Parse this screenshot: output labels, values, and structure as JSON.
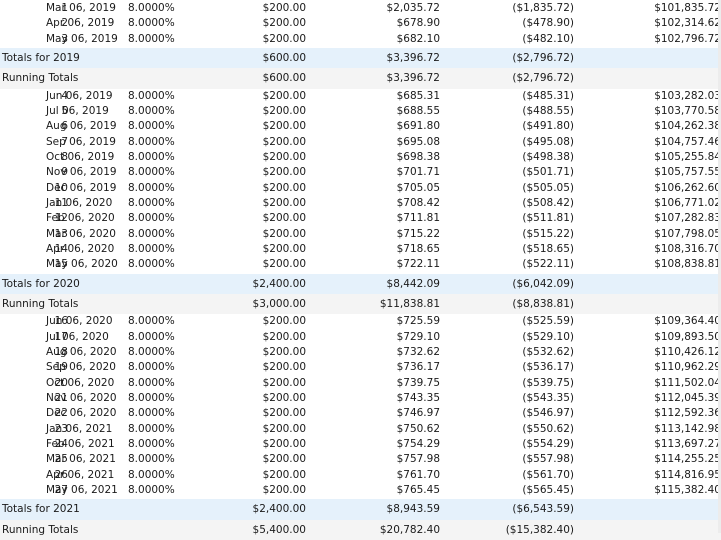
{
  "schedule": {
    "sections": [
      {
        "rows": [
          {
            "num": "1",
            "date": "Mar 06, 2019",
            "rate": "8.0000%",
            "payment": "$200.00",
            "interest": "$2,035.72",
            "principal": "($1,835.72)",
            "balance": "$101,835.72"
          },
          {
            "num": "2",
            "date": "Apr 06, 2019",
            "rate": "8.0000%",
            "payment": "$200.00",
            "interest": "$678.90",
            "principal": "($478.90)",
            "balance": "$102,314.62"
          },
          {
            "num": "3",
            "date": "May 06, 2019",
            "rate": "8.0000%",
            "payment": "$200.00",
            "interest": "$682.10",
            "principal": "($482.10)",
            "balance": "$102,796.72"
          }
        ],
        "totals": {
          "label": "Totals for 2019",
          "payment": "$600.00",
          "interest": "$3,396.72",
          "principal": "($2,796.72)"
        },
        "running": {
          "label": "Running Totals",
          "payment": "$600.00",
          "interest": "$3,396.72",
          "principal": "($2,796.72)"
        }
      },
      {
        "rows": [
          {
            "num": "4",
            "date": "Jun 06, 2019",
            "rate": "8.0000%",
            "payment": "$200.00",
            "interest": "$685.31",
            "principal": "($485.31)",
            "balance": "$103,282.03"
          },
          {
            "num": "5",
            "date": "Jul 06, 2019",
            "rate": "8.0000%",
            "payment": "$200.00",
            "interest": "$688.55",
            "principal": "($488.55)",
            "balance": "$103,770.58"
          },
          {
            "num": "6",
            "date": "Aug 06, 2019",
            "rate": "8.0000%",
            "payment": "$200.00",
            "interest": "$691.80",
            "principal": "($491.80)",
            "balance": "$104,262.38"
          },
          {
            "num": "7",
            "date": "Sep 06, 2019",
            "rate": "8.0000%",
            "payment": "$200.00",
            "interest": "$695.08",
            "principal": "($495.08)",
            "balance": "$104,757.46"
          },
          {
            "num": "8",
            "date": "Oct 06, 2019",
            "rate": "8.0000%",
            "payment": "$200.00",
            "interest": "$698.38",
            "principal": "($498.38)",
            "balance": "$105,255.84"
          },
          {
            "num": "9",
            "date": "Nov 06, 2019",
            "rate": "8.0000%",
            "payment": "$200.00",
            "interest": "$701.71",
            "principal": "($501.71)",
            "balance": "$105,757.55"
          },
          {
            "num": "10",
            "date": "Dec 06, 2019",
            "rate": "8.0000%",
            "payment": "$200.00",
            "interest": "$705.05",
            "principal": "($505.05)",
            "balance": "$106,262.60"
          },
          {
            "num": "11",
            "date": "Jan 06, 2020",
            "rate": "8.0000%",
            "payment": "$200.00",
            "interest": "$708.42",
            "principal": "($508.42)",
            "balance": "$106,771.02"
          },
          {
            "num": "12",
            "date": "Feb 06, 2020",
            "rate": "8.0000%",
            "payment": "$200.00",
            "interest": "$711.81",
            "principal": "($511.81)",
            "balance": "$107,282.83"
          },
          {
            "num": "13",
            "date": "Mar 06, 2020",
            "rate": "8.0000%",
            "payment": "$200.00",
            "interest": "$715.22",
            "principal": "($515.22)",
            "balance": "$107,798.05"
          },
          {
            "num": "14",
            "date": "Apr 06, 2020",
            "rate": "8.0000%",
            "payment": "$200.00",
            "interest": "$718.65",
            "principal": "($518.65)",
            "balance": "$108,316.70"
          },
          {
            "num": "15",
            "date": "May 06, 2020",
            "rate": "8.0000%",
            "payment": "$200.00",
            "interest": "$722.11",
            "principal": "($522.11)",
            "balance": "$108,838.81"
          }
        ],
        "totals": {
          "label": "Totals for 2020",
          "payment": "$2,400.00",
          "interest": "$8,442.09",
          "principal": "($6,042.09)"
        },
        "running": {
          "label": "Running Totals",
          "payment": "$3,000.00",
          "interest": "$11,838.81",
          "principal": "($8,838.81)"
        }
      },
      {
        "rows": [
          {
            "num": "16",
            "date": "Jun 06, 2020",
            "rate": "8.0000%",
            "payment": "$200.00",
            "interest": "$725.59",
            "principal": "($525.59)",
            "balance": "$109,364.40"
          },
          {
            "num": "17",
            "date": "Jul 06, 2020",
            "rate": "8.0000%",
            "payment": "$200.00",
            "interest": "$729.10",
            "principal": "($529.10)",
            "balance": "$109,893.50"
          },
          {
            "num": "18",
            "date": "Aug 06, 2020",
            "rate": "8.0000%",
            "payment": "$200.00",
            "interest": "$732.62",
            "principal": "($532.62)",
            "balance": "$110,426.12"
          },
          {
            "num": "19",
            "date": "Sep 06, 2020",
            "rate": "8.0000%",
            "payment": "$200.00",
            "interest": "$736.17",
            "principal": "($536.17)",
            "balance": "$110,962.29"
          },
          {
            "num": "20",
            "date": "Oct 06, 2020",
            "rate": "8.0000%",
            "payment": "$200.00",
            "interest": "$739.75",
            "principal": "($539.75)",
            "balance": "$111,502.04"
          },
          {
            "num": "21",
            "date": "Nov 06, 2020",
            "rate": "8.0000%",
            "payment": "$200.00",
            "interest": "$743.35",
            "principal": "($543.35)",
            "balance": "$112,045.39"
          },
          {
            "num": "22",
            "date": "Dec 06, 2020",
            "rate": "8.0000%",
            "payment": "$200.00",
            "interest": "$746.97",
            "principal": "($546.97)",
            "balance": "$112,592.36"
          },
          {
            "num": "23",
            "date": "Jan 06, 2021",
            "rate": "8.0000%",
            "payment": "$200.00",
            "interest": "$750.62",
            "principal": "($550.62)",
            "balance": "$113,142.98"
          },
          {
            "num": "24",
            "date": "Feb 06, 2021",
            "rate": "8.0000%",
            "payment": "$200.00",
            "interest": "$754.29",
            "principal": "($554.29)",
            "balance": "$113,697.27"
          },
          {
            "num": "25",
            "date": "Mar 06, 2021",
            "rate": "8.0000%",
            "payment": "$200.00",
            "interest": "$757.98",
            "principal": "($557.98)",
            "balance": "$114,255.25"
          },
          {
            "num": "26",
            "date": "Apr 06, 2021",
            "rate": "8.0000%",
            "payment": "$200.00",
            "interest": "$761.70",
            "principal": "($561.70)",
            "balance": "$114,816.95"
          },
          {
            "num": "27",
            "date": "May 06, 2021",
            "rate": "8.0000%",
            "payment": "$200.00",
            "interest": "$765.45",
            "principal": "($565.45)",
            "balance": "$115,382.40"
          }
        ],
        "totals": {
          "label": "Totals for 2021",
          "payment": "$2,400.00",
          "interest": "$8,943.59",
          "principal": "($6,543.59)"
        },
        "running": {
          "label": "Running Totals",
          "payment": "$5,400.00",
          "interest": "$20,782.40",
          "principal": "($15,382.40)"
        }
      }
    ]
  }
}
